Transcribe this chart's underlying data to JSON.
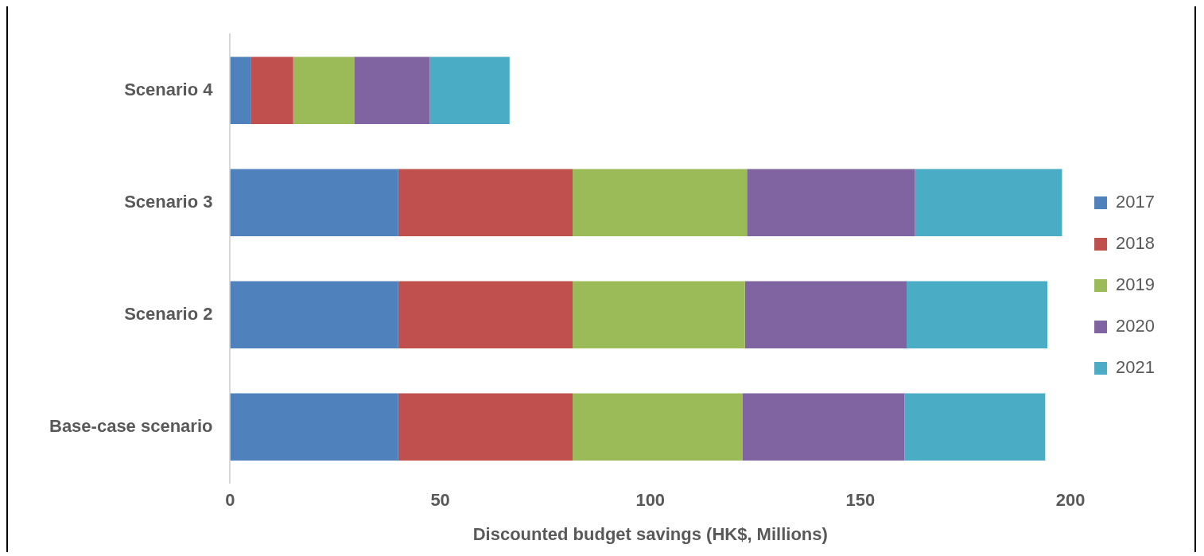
{
  "chart_data": {
    "type": "bar",
    "orientation": "horizontal",
    "stacked": true,
    "xlabel": "Discounted budget savings (HK$, Millions)",
    "categories": [
      "Scenario 4",
      "Scenario 3",
      "Scenario 2",
      "Base-case scenario"
    ],
    "series": [
      {
        "name": "2017",
        "color": "#4f81bd",
        "values": [
          5,
          40,
          40,
          40
        ]
      },
      {
        "name": "2018",
        "color": "#c0504d",
        "values": [
          10,
          41.5,
          41.5,
          41.5
        ]
      },
      {
        "name": "2019",
        "color": "#9bbb59",
        "values": [
          14.5,
          41.5,
          41,
          40.5
        ]
      },
      {
        "name": "2020",
        "color": "#8064a2",
        "values": [
          18,
          40,
          38.5,
          38.5
        ]
      },
      {
        "name": "2021",
        "color": "#4bacc6",
        "values": [
          19,
          35,
          33.5,
          33.5
        ]
      }
    ],
    "xlim": [
      0,
      200
    ],
    "xticks": [
      0,
      50,
      100,
      150,
      200
    ],
    "grid": false,
    "legend": "right"
  }
}
